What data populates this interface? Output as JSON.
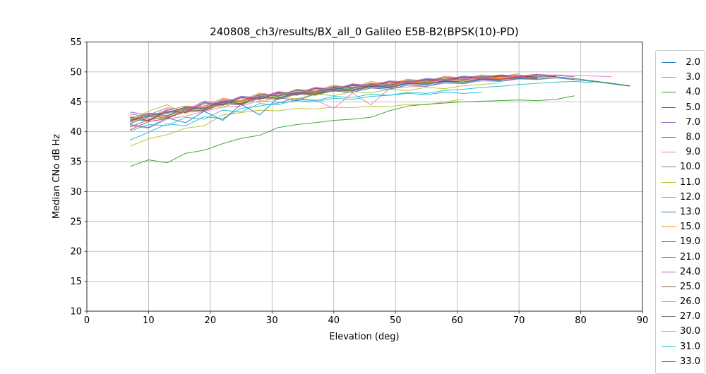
{
  "figure": {
    "title": "240808_ch3/results/BX_all_0 Galileo E5B-B2(BPSK(10)-PD)",
    "xlabel": "Elevation (deg)",
    "ylabel": "Median CNo dB Hz"
  },
  "chart_data": {
    "type": "line",
    "title": "240808_ch3/results/BX_all_0 Galileo E5B-B2(BPSK(10)-PD)",
    "xlabel": "Elevation (deg)",
    "ylabel": "Median CNo dB Hz",
    "xlim": [
      0,
      90
    ],
    "ylim": [
      10,
      55
    ],
    "xticks": [
      0,
      10,
      20,
      30,
      40,
      50,
      60,
      70,
      80,
      90
    ],
    "yticks": [
      10,
      15,
      20,
      25,
      30,
      35,
      40,
      45,
      50,
      55
    ],
    "grid": true,
    "grid_color": "#b0b0b0",
    "legend_position": "right-outside",
    "legend_note": "last entry 33.0 clipped by image bottom edge",
    "series": [
      {
        "name": "2.0",
        "color": "#1f77b4",
        "x0": 7,
        "dx": 3,
        "y": [
          42.1,
          41.8,
          43.3,
          43.2,
          44.9,
          44.4,
          45.9,
          45.6,
          46.4,
          46.1,
          47.2,
          46.9,
          47.7,
          47.5,
          48.3,
          48.0,
          48.6,
          48.4,
          49.1,
          48.8,
          49.3,
          49.1,
          49.4
        ]
      },
      {
        "name": "3.0",
        "color": "#ff7f0e",
        "x0": 7,
        "dx": 3,
        "y": [
          42.6,
          42.1,
          43.6,
          44.3,
          44.2,
          45.6,
          45.2,
          46.5,
          46.0,
          47.1,
          46.8,
          47.8,
          47.3,
          48.4,
          48.0,
          48.8,
          48.4,
          49.3,
          48.9,
          49.5,
          49.2,
          49.7
        ]
      },
      {
        "name": "4.0",
        "color": "#2ca02c",
        "x0": 7,
        "dx": 3,
        "y": [
          41.4,
          42.5,
          42.6,
          43.8,
          44.0,
          45.1,
          45.0,
          46.1,
          45.9,
          46.7,
          46.5,
          47.4,
          47.2,
          47.9,
          47.7,
          48.4,
          48.2,
          48.8,
          48.6,
          49.2,
          48.9,
          49.3,
          49.1,
          49.2,
          48.9,
          48.5,
          48.1,
          47.7
        ]
      },
      {
        "name": "5.0",
        "color": "#d62728",
        "x0": 7,
        "dx": 3,
        "y": [
          40.3,
          41.7,
          42.2,
          43.5,
          43.6,
          44.8,
          44.7,
          45.9,
          45.6,
          46.4,
          46.3,
          47.1,
          46.9,
          47.6,
          47.4,
          48.2,
          48.0,
          48.5,
          48.3,
          48.9,
          48.8,
          49.2,
          49.0
        ]
      },
      {
        "name": "7.0",
        "color": "#9467bd",
        "x0": 7,
        "dx": 3,
        "y": [
          43.0,
          42.4,
          43.7,
          43.4,
          44.9,
          44.6,
          45.8,
          45.5,
          46.6,
          46.3,
          47.3,
          47.0,
          47.9,
          47.6,
          48.4,
          48.1,
          48.8,
          48.6,
          49.2,
          49.0,
          49.4,
          49.2,
          49.5,
          49.3
        ]
      },
      {
        "name": "8.0",
        "color": "#8c564b",
        "x0": 7,
        "dx": 3,
        "y": [
          41.9,
          43.0,
          42.7,
          44.1,
          43.9,
          45.2,
          45.0,
          46.2,
          46.0,
          46.9,
          46.6,
          47.5,
          47.3,
          48.0,
          47.8,
          48.5,
          48.3,
          49.0,
          48.7,
          49.2,
          49.4,
          49.1,
          49.3
        ]
      },
      {
        "name": "9.0",
        "color": "#e377c2",
        "x0": 7,
        "dx": 3,
        "y": [
          41.0,
          40.6,
          42.1,
          42.6,
          43.4,
          44.1,
          44.3,
          45.2,
          44.9,
          45.6,
          45.3,
          43.9,
          46.5,
          44.5,
          47.2,
          47.5,
          47.6,
          48.1,
          48.0,
          48.5,
          48.4,
          48.8,
          48.7,
          49.0,
          48.8
        ]
      },
      {
        "name": "10.0",
        "color": "#7f7f7f",
        "x0": 7,
        "dx": 3,
        "y": [
          42.2,
          43.1,
          43.0,
          44.2,
          44.0,
          45.4,
          45.1,
          46.3,
          46.1,
          47.0,
          46.7,
          47.6,
          47.4,
          48.1,
          47.9,
          48.6,
          48.4,
          49.1,
          48.9,
          49.3,
          49.1,
          49.5,
          49.2,
          49.4
        ]
      },
      {
        "name": "11.0",
        "color": "#bcbd22",
        "x0": 7,
        "dx": 3,
        "y": [
          37.6,
          38.8,
          39.5,
          40.6,
          41.0,
          42.8,
          43.2,
          43.6,
          43.5,
          43.9,
          43.8,
          44.1,
          44.0,
          44.3,
          44.2,
          44.6,
          44.5,
          45.0,
          45.4
        ]
      },
      {
        "name": "12.0",
        "color": "#17becf",
        "x0": 7,
        "dx": 3,
        "y": [
          38.6,
          39.9,
          41.3,
          41.0,
          42.5,
          42.2,
          43.9,
          44.3,
          44.8,
          45.2,
          45.0,
          45.6,
          45.4,
          45.9,
          46.1,
          46.4,
          46.2,
          46.6,
          46.4,
          46.6
        ]
      },
      {
        "name": "13.0",
        "color": "#1f77b4",
        "x0": 7,
        "dx": 3,
        "y": [
          41.2,
          40.7,
          42.3,
          41.5,
          43.4,
          41.9,
          44.6,
          42.8,
          45.7,
          45.2,
          46.3,
          46.8,
          46.6,
          47.3,
          47.1,
          47.8,
          47.6,
          48.3,
          48.1,
          48.7,
          48.5,
          48.9,
          48.8,
          49.0,
          48.7,
          48.4,
          48.0,
          47.6
        ]
      },
      {
        "name": "15.0",
        "color": "#ff7f0e",
        "x0": 7,
        "dx": 3,
        "y": [
          41.6,
          42.8,
          42.5,
          43.9,
          43.7,
          45.0,
          44.8,
          45.9,
          45.7,
          46.6,
          46.4,
          47.2,
          47.0,
          47.8,
          47.6,
          48.3,
          48.1,
          48.7,
          48.5,
          49.0,
          48.9,
          49.3,
          49.6
        ]
      },
      {
        "name": "19.0",
        "color": "#2ca02c",
        "x0": 7,
        "dx": 3,
        "y": [
          34.2,
          35.3,
          34.8,
          36.4,
          36.9,
          38.0,
          38.9,
          39.4,
          40.7,
          41.2,
          41.5,
          41.9,
          42.1,
          42.4,
          43.5,
          44.3,
          44.6,
          44.8,
          45.0,
          45.1,
          45.2,
          45.3,
          45.2,
          45.4,
          46.0
        ]
      },
      {
        "name": "21.0",
        "color": "#d62728",
        "x0": 7,
        "dx": 3,
        "y": [
          42.4,
          41.9,
          43.5,
          43.2,
          44.7,
          44.5,
          45.7,
          45.4,
          46.5,
          46.2,
          47.2,
          47.0,
          47.8,
          47.5,
          48.3,
          48.2,
          48.7,
          48.5,
          49.1,
          48.9,
          49.3,
          49.1,
          49.4,
          49.2
        ]
      },
      {
        "name": "24.0",
        "color": "#9467bd",
        "x0": 7,
        "dx": 3,
        "y": [
          43.3,
          42.8,
          44.0,
          43.6,
          45.1,
          44.8,
          45.9,
          45.7,
          46.7,
          46.4,
          47.4,
          47.1,
          48.0,
          47.7,
          48.5,
          48.3,
          48.9,
          48.7,
          49.3,
          49.1,
          49.5,
          49.3,
          49.6,
          49.4,
          49.2
        ]
      },
      {
        "name": "25.0",
        "color": "#8c564b",
        "x0": 7,
        "dx": 3,
        "y": [
          40.8,
          42.0,
          42.4,
          43.3,
          43.5,
          44.6,
          44.5,
          45.6,
          45.4,
          46.3,
          46.1,
          46.9,
          46.8,
          47.5,
          47.3,
          48.0,
          47.9,
          48.4,
          48.3,
          48.8,
          48.7,
          49.0,
          48.9
        ]
      },
      {
        "name": "26.0",
        "color": "#e377c2",
        "x0": 7,
        "dx": 3,
        "y": [
          41.7,
          42.9,
          43.1,
          44.0,
          44.3,
          45.2,
          45.5,
          46.0,
          46.3,
          46.6,
          46.9,
          47.3,
          47.5,
          47.8,
          48.0,
          48.3,
          48.4,
          48.6,
          48.8,
          49.0,
          49.1,
          49.3,
          49.4,
          49.5,
          49.4,
          49.3,
          49.2
        ]
      },
      {
        "name": "27.0",
        "color": "#7f7f7f",
        "x0": 7,
        "dx": 3,
        "y": [
          41.3,
          42.6,
          42.3,
          43.7,
          43.5,
          44.9,
          44.6,
          45.8,
          45.5,
          46.5,
          46.2,
          47.1,
          46.8,
          47.7,
          47.4,
          48.2,
          47.9,
          48.6,
          48.3,
          48.9,
          48.7,
          49.1
        ]
      },
      {
        "name": "30.0",
        "color": "#bcbd22",
        "x0": 7,
        "dx": 3,
        "y": [
          42.0,
          43.4,
          44.5,
          43.0,
          44.4,
          44.1,
          45.2,
          44.9,
          45.8,
          45.5,
          46.3,
          46.0,
          46.7,
          46.5,
          47.1,
          46.9,
          47.4,
          47.2,
          47.7,
          47.9,
          48.2
        ]
      },
      {
        "name": "31.0",
        "color": "#17becf",
        "x0": 7,
        "dx": 3,
        "y": [
          40.1,
          41.2,
          41.0,
          42.4,
          42.1,
          43.6,
          43.3,
          44.7,
          44.5,
          45.4,
          45.2,
          45.9,
          45.7,
          46.3,
          46.1,
          46.6,
          46.4,
          46.9,
          47.1,
          47.4,
          47.6,
          47.9,
          48.1,
          48.3,
          48.4,
          48.2
        ]
      },
      {
        "name": "33.0",
        "color": "#1f77b4",
        "x0": 7,
        "dx": 3,
        "y": [
          41.8,
          42.7,
          43.2,
          44.0,
          43.8,
          45.0,
          44.7,
          45.9,
          45.6,
          46.6,
          46.3,
          47.3,
          47.0,
          47.7,
          47.5,
          48.1,
          47.9,
          48.5,
          48.3,
          48.8,
          48.6
        ]
      }
    ]
  }
}
